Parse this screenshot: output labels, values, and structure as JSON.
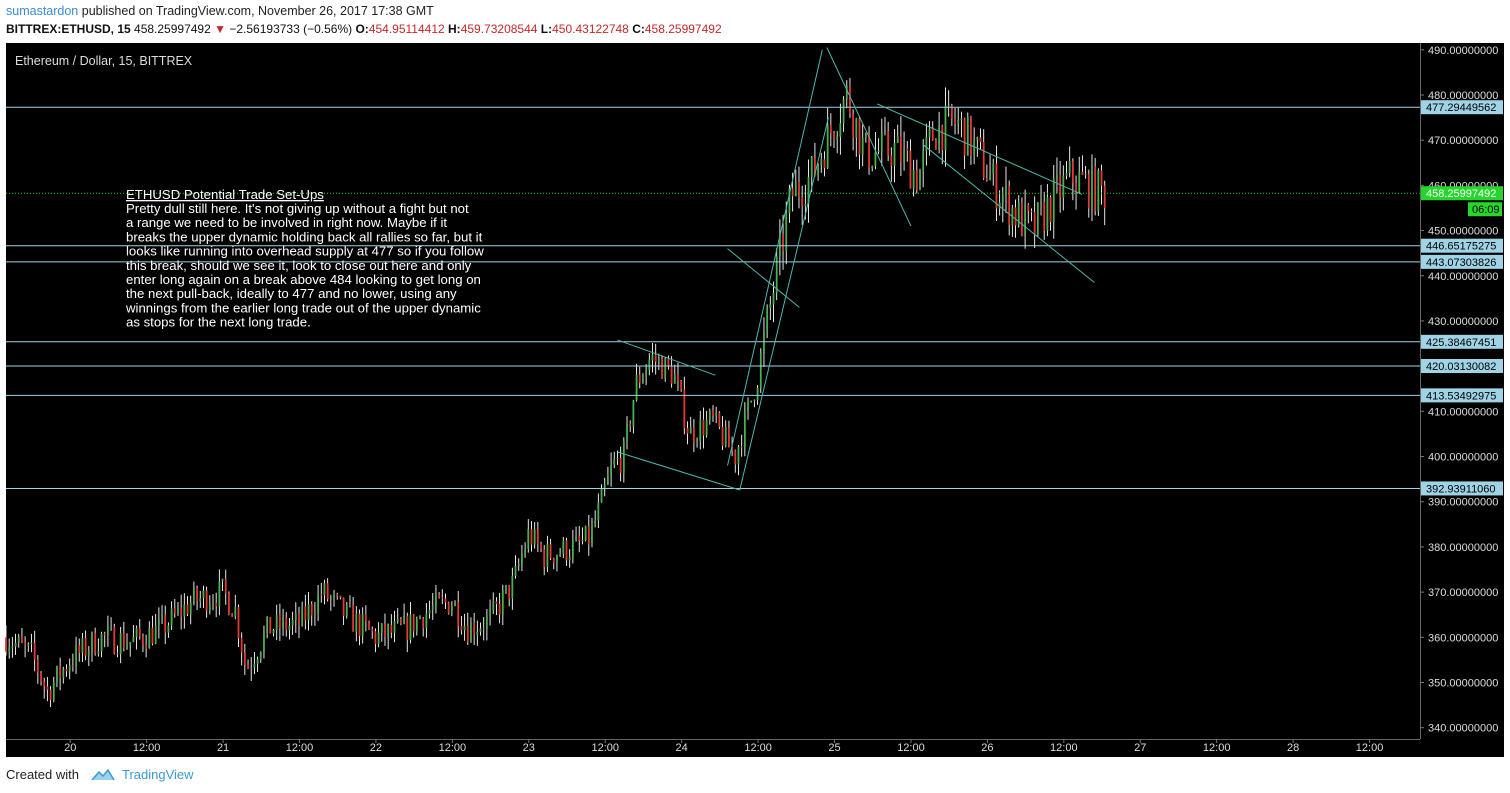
{
  "header": {
    "author": "sumastardon",
    "published_text": "published on TradingView.com, November 26, 2017 17:38 GMT",
    "symbol": "BITTREX:ETHUSD, 15",
    "last": "458.25997492",
    "change": "−2.56193733 (−0.56%)",
    "o_label": "O:",
    "o_value": "454.95114412",
    "h_label": "H:",
    "h_value": "459.73208544",
    "l_label": "L:",
    "l_value": "450.43122748",
    "c_label": "C:",
    "c_value": "458.25997492"
  },
  "footer": {
    "created_with": "Created with",
    "brand": "TradingView"
  },
  "colors": {
    "background": "#000000",
    "up_candle": "#4caf50",
    "down_candle": "#e53935",
    "wick": "#ffffff",
    "level_line": "#9fd3e6",
    "trend_line": "#4db6ac",
    "price_line": "#1fce1f",
    "price_label_bg": "#26d62c",
    "level_label_bg": "#9fd3e6"
  },
  "chart_data": {
    "type": "candlestick",
    "title": "Ethereum / Dollar, 15, BITTREX",
    "ylim": [
      337.5,
      491.5
    ],
    "y_ticks": [
      340,
      350,
      360,
      370,
      380,
      390,
      400,
      410,
      420,
      430,
      440,
      450,
      460,
      470,
      480,
      490
    ],
    "y_tick_labels": [
      "340.00000000",
      "350.00000000",
      "360.00000000",
      "370.00000000",
      "380.00000000",
      "390.00000000",
      "400.00000000",
      "410.00000000",
      "420.00000000",
      "430.00000000",
      "440.00000000",
      "450.00000000",
      "460.00000000",
      "470.00000000",
      "480.00000000",
      "490.00000000"
    ],
    "xlim": [
      19.58,
      28.83
    ],
    "x_ticks": [
      {
        "t": 20.0,
        "label": "20"
      },
      {
        "t": 20.5,
        "label": "12:00"
      },
      {
        "t": 21.0,
        "label": "21"
      },
      {
        "t": 21.5,
        "label": "12:00"
      },
      {
        "t": 22.0,
        "label": "22"
      },
      {
        "t": 22.5,
        "label": "12:00"
      },
      {
        "t": 23.0,
        "label": "23"
      },
      {
        "t": 23.5,
        "label": "12:00"
      },
      {
        "t": 24.0,
        "label": "24"
      },
      {
        "t": 24.5,
        "label": "12:00"
      },
      {
        "t": 25.0,
        "label": "25"
      },
      {
        "t": 25.5,
        "label": "12:00"
      },
      {
        "t": 26.0,
        "label": "26"
      },
      {
        "t": 26.5,
        "label": "12:00"
      },
      {
        "t": 27.0,
        "label": "27"
      },
      {
        "t": 27.5,
        "label": "12:00"
      },
      {
        "t": 28.0,
        "label": "28"
      },
      {
        "t": 28.5,
        "label": "12:00"
      }
    ],
    "x_unit_note": "x values are days of November 2017",
    "price_anchors": [
      [
        19.58,
        360
      ],
      [
        19.75,
        356
      ],
      [
        19.85,
        348
      ],
      [
        20.0,
        355
      ],
      [
        20.2,
        360
      ],
      [
        20.4,
        359
      ],
      [
        20.6,
        362
      ],
      [
        20.8,
        368
      ],
      [
        21.0,
        370
      ],
      [
        21.08,
        366
      ],
      [
        21.15,
        353
      ],
      [
        21.3,
        362
      ],
      [
        21.5,
        363
      ],
      [
        21.65,
        370
      ],
      [
        21.8,
        365
      ],
      [
        22.0,
        360
      ],
      [
        22.2,
        362
      ],
      [
        22.35,
        366
      ],
      [
        22.5,
        368
      ],
      [
        22.6,
        362
      ],
      [
        22.75,
        364
      ],
      [
        22.9,
        372
      ],
      [
        23.0,
        383
      ],
      [
        23.1,
        378
      ],
      [
        23.3,
        380
      ],
      [
        23.4,
        382
      ],
      [
        23.55,
        398
      ],
      [
        23.62,
        400
      ],
      [
        23.7,
        416
      ],
      [
        23.8,
        422
      ],
      [
        23.95,
        418
      ],
      [
        24.05,
        405
      ],
      [
        24.2,
        408
      ],
      [
        24.35,
        400
      ],
      [
        24.5,
        418
      ],
      [
        24.6,
        437
      ],
      [
        24.72,
        458
      ],
      [
        24.85,
        462
      ],
      [
        25.0,
        474
      ],
      [
        25.08,
        480
      ],
      [
        25.2,
        467
      ],
      [
        25.4,
        468
      ],
      [
        25.55,
        462
      ],
      [
        25.65,
        472
      ],
      [
        25.8,
        474
      ],
      [
        25.92,
        468
      ],
      [
        26.05,
        460
      ],
      [
        26.2,
        453
      ],
      [
        26.3,
        450
      ],
      [
        26.45,
        458
      ],
      [
        26.55,
        462
      ],
      [
        26.7,
        459
      ],
      [
        26.78,
        458.26
      ]
    ],
    "horizontal_levels": [
      {
        "value": 477.29449562,
        "label": "477.29449562"
      },
      {
        "value": 446.65175275,
        "label": "446.65175275"
      },
      {
        "value": 443.07303826,
        "label": "443.07303826"
      },
      {
        "value": 425.38467451,
        "label": "425.38467451"
      },
      {
        "value": 420.03130082,
        "label": "420.03130082"
      },
      {
        "value": 413.53492975,
        "label": "413.53492975"
      },
      {
        "value": 392.9391106,
        "label": "392.93911060"
      }
    ],
    "last_price": {
      "value": 458.25997492,
      "label": "458.25997492",
      "countdown": "06:09"
    },
    "trend_lines": [
      {
        "t1": 23.58,
        "p1": 425.8,
        "t2": 24.22,
        "p2": 418.0
      },
      {
        "t1": 23.58,
        "p1": 401.0,
        "t2": 24.38,
        "p2": 392.6
      },
      {
        "t1": 24.3,
        "p1": 398.0,
        "t2": 24.92,
        "p2": 490.0
      },
      {
        "t1": 24.38,
        "p1": 392.6,
        "t2": 24.96,
        "p2": 475.0
      },
      {
        "t1": 24.95,
        "p1": 490.5,
        "t2": 25.5,
        "p2": 451.0
      },
      {
        "t1": 24.3,
        "p1": 446.0,
        "t2": 24.77,
        "p2": 433.0
      },
      {
        "t1": 25.28,
        "p1": 478.0,
        "t2": 26.62,
        "p2": 458.0
      },
      {
        "t1": 25.58,
        "p1": 469.0,
        "t2": 26.7,
        "p2": 438.5
      }
    ],
    "annotation": {
      "title": "ETHUSD  Potential Trade Set-Ups",
      "lines": [
        "Pretty dull still here. It's not giving up without a fight but not",
        "a range we need to be involved in right now. Maybe if it",
        "breaks the upper dynamic holding back all rallies so far, but it",
        "looks like running into overhead supply at 477 so if you follow",
        "this break, should we see it, look to close out here and only",
        "enter long again on a break  above 484 looking to get long on",
        "the next pull-back, ideally to 477 and no lower, using any",
        "winnings from the earlier long trade out of the upper dynamic",
        "as stops for the next long trade."
      ]
    }
  }
}
